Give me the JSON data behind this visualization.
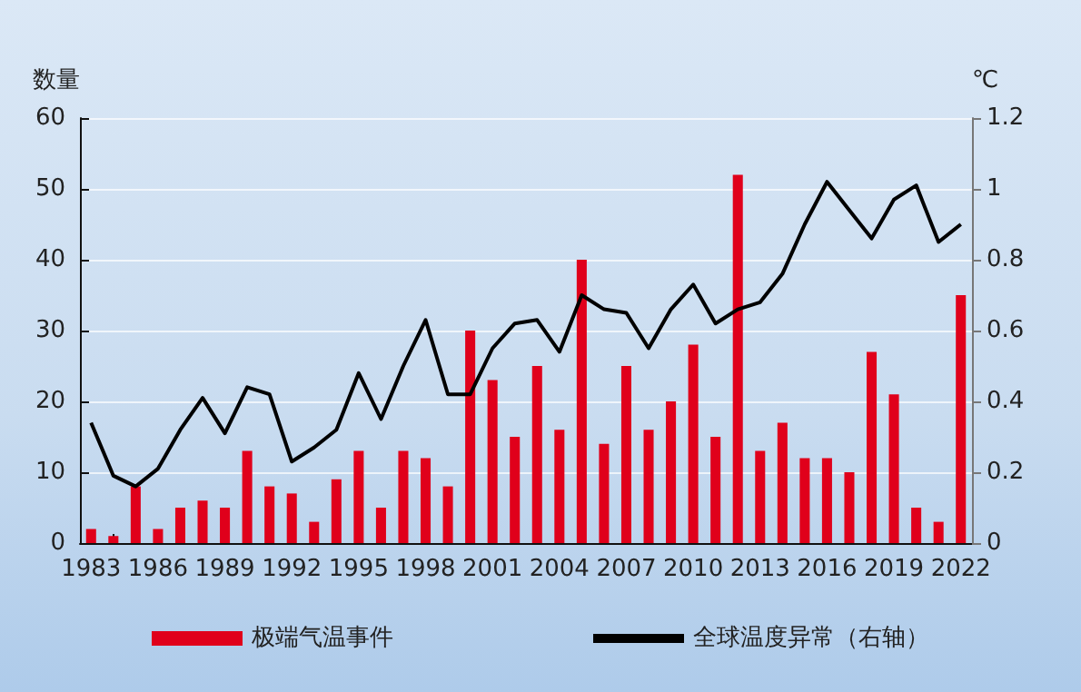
{
  "chart_data": {
    "type": "bar",
    "ylabel": "数量",
    "y2label": "℃",
    "categories": [
      "1983",
      null,
      null,
      "1986",
      null,
      null,
      "1989",
      null,
      null,
      "1992",
      null,
      null,
      "1995",
      null,
      null,
      "1998",
      null,
      null,
      "2001",
      null,
      null,
      "2004",
      null,
      null,
      "2007",
      null,
      null,
      "2010",
      null,
      null,
      "2013",
      null,
      null,
      "2016",
      null,
      null,
      "2019",
      null,
      null,
      "2022"
    ],
    "series": [
      {
        "name": "极端气温事件",
        "color": "#e0001b",
        "values": [
          2,
          1,
          8,
          2,
          5,
          6,
          5,
          13,
          8,
          7,
          3,
          9,
          13,
          5,
          13,
          12,
          8,
          30,
          23,
          15,
          25,
          16,
          40,
          14,
          25,
          16,
          20,
          28,
          15,
          52,
          13,
          17,
          12,
          12,
          10,
          27,
          21,
          5,
          3,
          35
        ]
      },
      {
        "name": "全球温度异常（右轴）",
        "type": "line",
        "axis": "y2",
        "color": "#000000",
        "values": [
          0.34,
          0.19,
          0.16,
          0.21,
          0.32,
          0.41,
          0.31,
          0.44,
          0.42,
          0.23,
          0.27,
          0.32,
          0.48,
          0.35,
          0.5,
          0.63,
          0.42,
          0.42,
          0.55,
          0.62,
          0.63,
          0.54,
          0.7,
          0.66,
          0.65,
          0.55,
          0.66,
          0.73,
          0.62,
          0.66,
          0.68,
          0.76,
          0.9,
          1.02,
          0.94,
          0.86,
          0.97,
          1.01,
          0.85,
          0.9
        ]
      }
    ],
    "ylim": [
      0,
      60
    ],
    "yticks": [
      0,
      10,
      20,
      30,
      40,
      50,
      60
    ],
    "y2lim": [
      0,
      1.2
    ],
    "y2ticks": [
      0,
      0.2,
      0.4,
      0.6,
      0.8,
      1,
      1.2
    ],
    "grid": "y",
    "legend": "bottom",
    "marker": "none",
    "line_style": "solid"
  }
}
